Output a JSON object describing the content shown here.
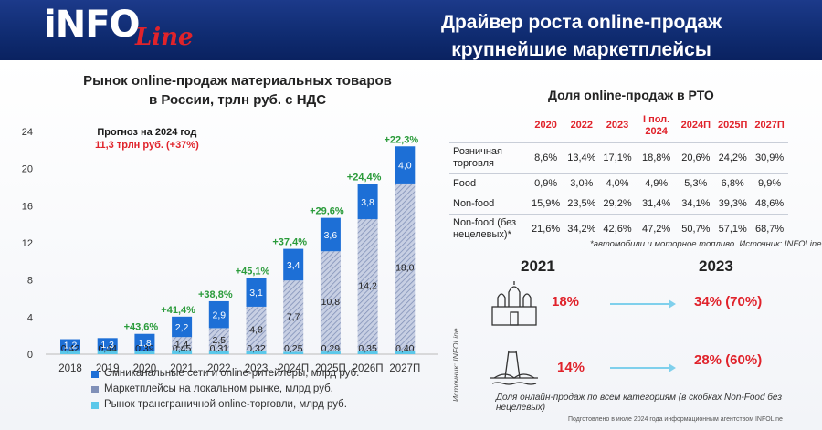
{
  "header": {
    "logo_text": "iNFO",
    "logo_script": "Line",
    "title_line1": "Драйвер роста online-продаж",
    "title_line2": "крупнейшие маркетплейсы"
  },
  "chart_title_line1": "Рынок online-продаж материальных товаров",
  "chart_title_line2": "в России, трлн руб. с НДС",
  "forecast_line1": "Прогноз на 2024 год",
  "forecast_line2": "11,3 трлн руб. (+37%)",
  "chart_data": {
    "type": "bar",
    "stacked": true,
    "categories": [
      "2018",
      "2019",
      "2020",
      "2021",
      "2022",
      "2023",
      "2024П",
      "2025П",
      "2026П",
      "2027П"
    ],
    "ylim": [
      0,
      24
    ],
    "yticks": [
      "0",
      "4",
      "8",
      "12",
      "16",
      "20",
      "24"
    ],
    "series": [
      {
        "name": "Рынок трансграничной online-торговли, млрд руб.",
        "values": [
          0.42,
          0.44,
          0.39,
          0.45,
          0.31,
          0.32,
          0.25,
          0.29,
          0.35,
          0.4
        ],
        "labels": [
          "0,42",
          "0,44",
          "0,39",
          "0,45",
          "0,31",
          "0,32",
          "0,25",
          "0,29",
          "0,35",
          "0,40"
        ]
      },
      {
        "name": "Маркетплейсы на локальном рынке, млрд руб.",
        "values": [
          0,
          0,
          0,
          1.4,
          2.5,
          4.8,
          7.7,
          10.8,
          14.2,
          18.0
        ],
        "labels": [
          "",
          "",
          "",
          "1,4",
          "2,5",
          "4,8",
          "7,7",
          "10,8",
          "14,2",
          "18,0"
        ]
      },
      {
        "name": "Омниканальные сети и online-ритейлеры, млрд руб.",
        "values": [
          1.2,
          1.3,
          1.8,
          2.2,
          2.9,
          3.1,
          3.4,
          3.6,
          3.8,
          4.0
        ],
        "labels": [
          "1,2",
          "1,3",
          "1,8",
          "2,2",
          "2,9",
          "3,1",
          "3,4",
          "3,6",
          "3,8",
          "4,0"
        ]
      }
    ],
    "growth_labels": [
      "",
      "",
      "+43,6%",
      "+41,4%",
      "+38,8%",
      "+45,1%",
      "+37,4%",
      "+29,6%",
      "+24,4%",
      "+22,3%"
    ],
    "colors": {
      "omni": "#1d6fd6",
      "marketplace": "#9aa9cc",
      "crossborder": "#5bc8ea",
      "growth": "#2a9b3a"
    }
  },
  "legend": [
    {
      "label": "Омниканальные сети и online-ритейлеры, млрд руб.",
      "color": "#1d6fd6"
    },
    {
      "label": "Маркетплейсы на локальном рынке, млрд руб.",
      "color": "#8090b8"
    },
    {
      "label": "Рынок трансграничной online-торговли, млрд руб.",
      "color": "#5bc8ea"
    }
  ],
  "rto": {
    "title": "Доля online-продаж в РТО",
    "headers": [
      "2020",
      "2022",
      "2023",
      "I пол. 2024",
      "2024П",
      "2025П",
      "2027П"
    ],
    "rows": [
      {
        "label": "Розничная торговля",
        "values": [
          "8,6%",
          "13,4%",
          "17,1%",
          "18,8%",
          "20,6%",
          "24,2%",
          "30,9%"
        ]
      },
      {
        "label": "Food",
        "values": [
          "0,9%",
          "3,0%",
          "4,0%",
          "4,9%",
          "5,3%",
          "6,8%",
          "9,9%"
        ]
      },
      {
        "label": "Non-food",
        "values": [
          "15,9%",
          "23,5%",
          "29,2%",
          "31,4%",
          "34,1%",
          "39,3%",
          "48,6%"
        ]
      },
      {
        "label": "Non-food (без нецелевых)*",
        "values": [
          "21,6%",
          "34,2%",
          "42,6%",
          "47,2%",
          "50,7%",
          "57,1%",
          "68,7%"
        ]
      }
    ],
    "note": "*автомобили и моторное топливо. Источник: INFOLine"
  },
  "comparison": {
    "year_a": "2021",
    "year_b": "2023",
    "msk_a": "18%",
    "msk_b": "34% (70%)",
    "spb_a": "14%",
    "spb_b": "28% (60%)",
    "caption": "Доля онлайн-продаж по всем категориям (в скобках Non-Food без нецелевых)",
    "source_vertical": "Источник: INFOLine"
  },
  "footer": "Подготовлено в июле 2024 года информационным агентством INFOLine"
}
